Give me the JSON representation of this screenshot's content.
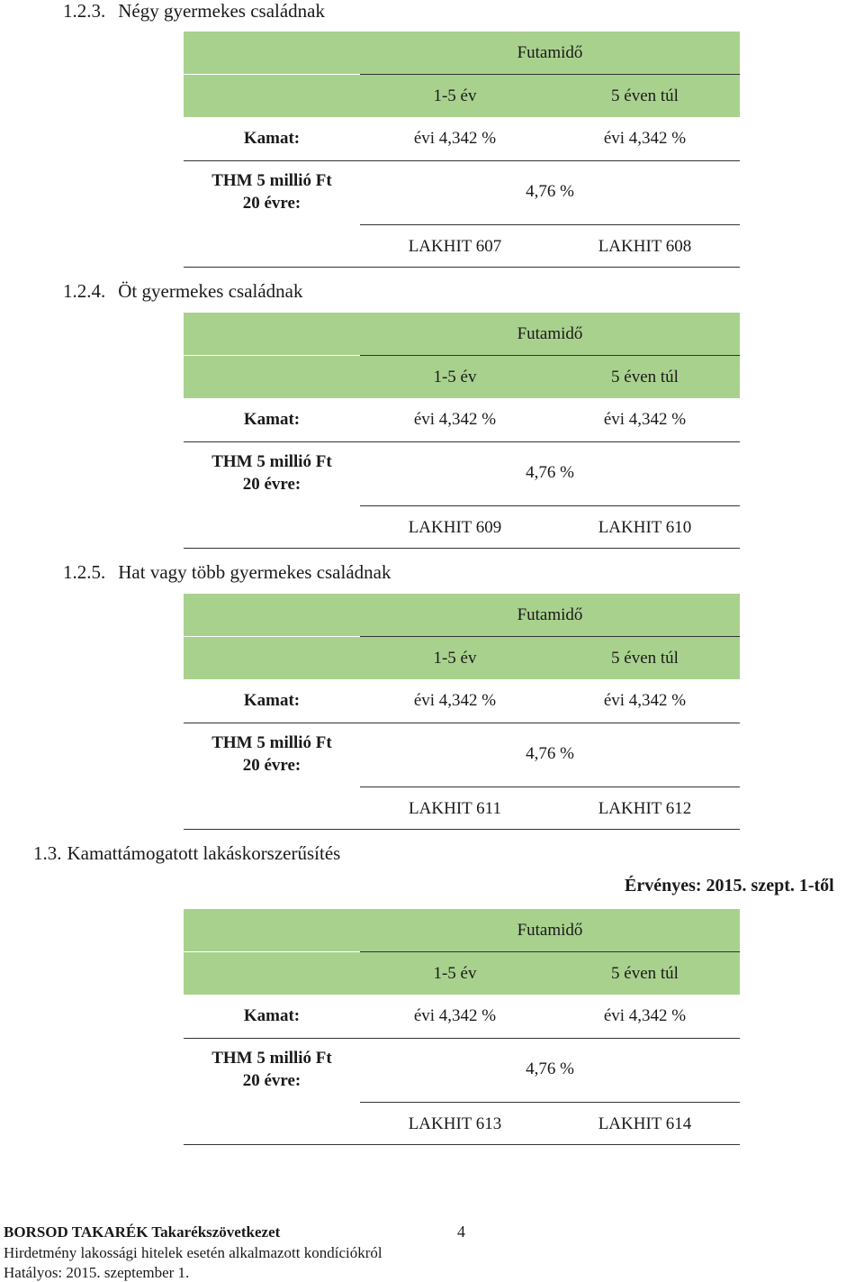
{
  "sections": [
    {
      "number": "1.2.3.",
      "title": "Négy gyermekes családnak",
      "futamido": "Futamidő",
      "col1": "1-5 év",
      "col2": "5 éven túl",
      "kamat_label": "Kamat:",
      "kamat1": "évi 4,342 %",
      "kamat2": "évi 4,342 %",
      "thm_label_1": "THM 5 millió Ft",
      "thm_label_2": "20 évre:",
      "thm_value": "4,76 %",
      "code1": "LAKHIT 607",
      "code2": "LAKHIT 608"
    },
    {
      "number": "1.2.4.",
      "title": "Öt gyermekes családnak",
      "futamido": "Futamidő",
      "col1": "1-5 év",
      "col2": "5 éven túl",
      "kamat_label": "Kamat:",
      "kamat1": "évi 4,342 %",
      "kamat2": "évi 4,342 %",
      "thm_label_1": "THM 5 millió Ft",
      "thm_label_2": "20 évre:",
      "thm_value": "4,76 %",
      "code1": "LAKHIT 609",
      "code2": "LAKHIT 610"
    },
    {
      "number": "1.2.5.",
      "title": "Hat vagy több gyermekes családnak",
      "futamido": "Futamidő",
      "col1": "1-5 év",
      "col2": "5 éven túl",
      "kamat_label": "Kamat:",
      "kamat1": "évi 4,342 %",
      "kamat2": "évi 4,342 %",
      "thm_label_1": "THM 5 millió Ft",
      "thm_label_2": "20 évre:",
      "thm_value": "4,76 %",
      "code1": "LAKHIT 611",
      "code2": "LAKHIT 612"
    },
    {
      "number": "1.3.",
      "title": "Kamattámogatott lakáskorszerűsítés",
      "futamido": "Futamidő",
      "col1": "1-5 év",
      "col2": "5 éven túl",
      "kamat_label": "Kamat:",
      "kamat1": "évi 4,342 %",
      "kamat2": "évi 4,342 %",
      "thm_label_1": "THM 5 millió Ft",
      "thm_label_2": "20 évre:",
      "thm_value": "4,76 %",
      "code1": "LAKHIT 613",
      "code2": "LAKHIT 614"
    }
  ],
  "valid_from": "Érvényes: 2015. szept. 1-től",
  "footer": {
    "company": "BORSOD TAKARÉK Takarékszövetkezet",
    "page": "4",
    "doc_title": "Hirdetmény lakossági hitelek esetén alkalmazott kondíciókról",
    "effective": "Hatályos: 2015. szeptember 1."
  }
}
